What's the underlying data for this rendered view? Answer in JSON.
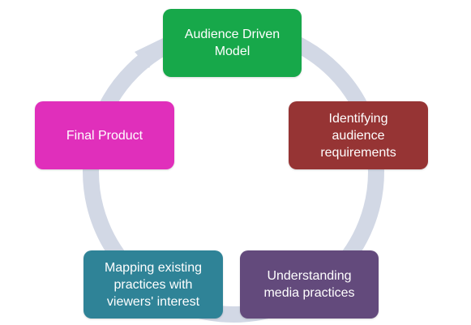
{
  "colors": {
    "ring": "#D2D8E5",
    "node_1": "#17A84A",
    "node_2": "#963434",
    "node_3": "#634A7C",
    "node_4": "#2F8397",
    "node_5": "#E02FBB"
  },
  "cycle": {
    "arrow_direction": "clockwise",
    "nodes": [
      {
        "label": "Audience Driven\nModel"
      },
      {
        "label": "Identifying\naudience\nrequirements"
      },
      {
        "label": "Understanding\nmedia practices"
      },
      {
        "label": "Mapping existing\npractices with\nviewers' interest"
      },
      {
        "label": "Final Product"
      }
    ]
  }
}
